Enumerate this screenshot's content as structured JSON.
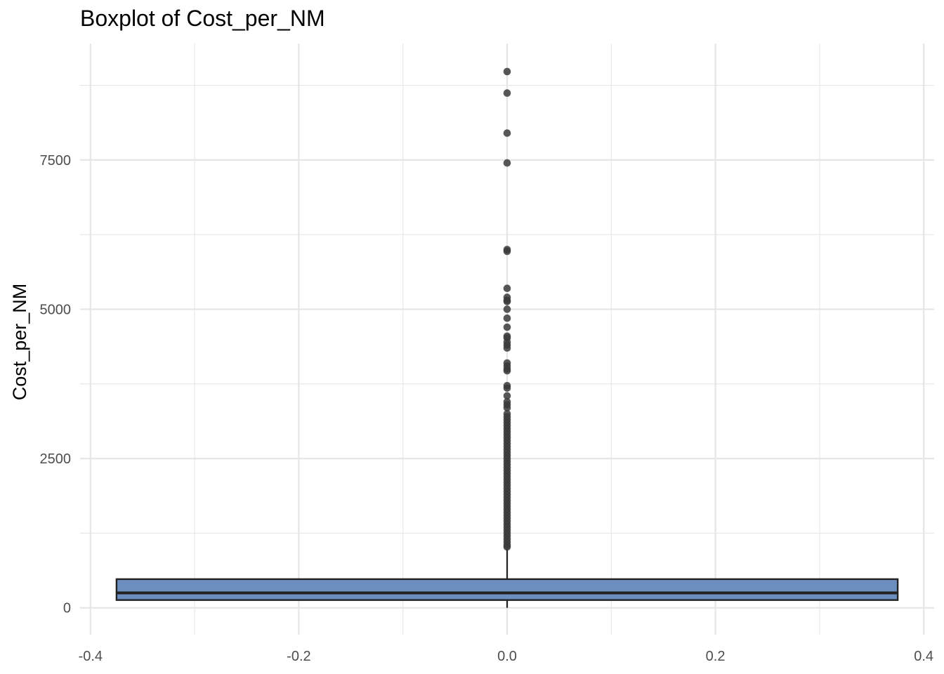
{
  "chart_data": {
    "type": "boxplot",
    "title": "Boxplot of Cost_per_NM",
    "xlabel": "",
    "ylabel": "Cost_per_NM",
    "x_ticks": [
      -0.4,
      -0.2,
      0.0,
      0.2,
      0.4
    ],
    "x_tick_labels": [
      "-0.4",
      "-0.2",
      "0.0",
      "0.2",
      "0.4"
    ],
    "y_ticks": [
      0,
      2500,
      5000,
      7500
    ],
    "y_tick_labels": [
      "0",
      "2500",
      "5000",
      "7500"
    ],
    "xlim": [
      -0.41,
      0.41
    ],
    "ylim": [
      -450,
      9450
    ],
    "grid": true,
    "legend": "none",
    "box": {
      "x": 0,
      "width": 0.75,
      "q1": 130,
      "median": 250,
      "q3": 480,
      "whisker_low": 0,
      "whisker_high": 1000
    },
    "outliers": [
      8980,
      8620,
      7950,
      7450,
      6000,
      5970,
      5350,
      5200,
      5150,
      5130,
      5000,
      4850,
      4700,
      4550,
      4520,
      4450,
      4400,
      4350,
      4100,
      4050,
      4000,
      3970,
      3720,
      3680,
      3550,
      3450,
      3400,
      3350,
      3250,
      3200,
      3150,
      3100,
      3050,
      3000,
      2950,
      2900,
      2850,
      2800,
      2750,
      2700,
      2650,
      2600,
      2550,
      2500,
      2450,
      2400,
      2350,
      2300,
      2250,
      2200,
      2150,
      2100,
      2050,
      2000,
      1950,
      1900,
      1850,
      1800,
      1750,
      1700,
      1650,
      1600,
      1550,
      1500,
      1450,
      1400,
      1350,
      1300,
      1250,
      1200,
      1150,
      1100,
      1050,
      1020
    ],
    "colors": {
      "box_fill": "#6c8ebf",
      "box_line": "#222222",
      "point": "#3a3a3a",
      "grid": "#e6e6e6"
    }
  }
}
